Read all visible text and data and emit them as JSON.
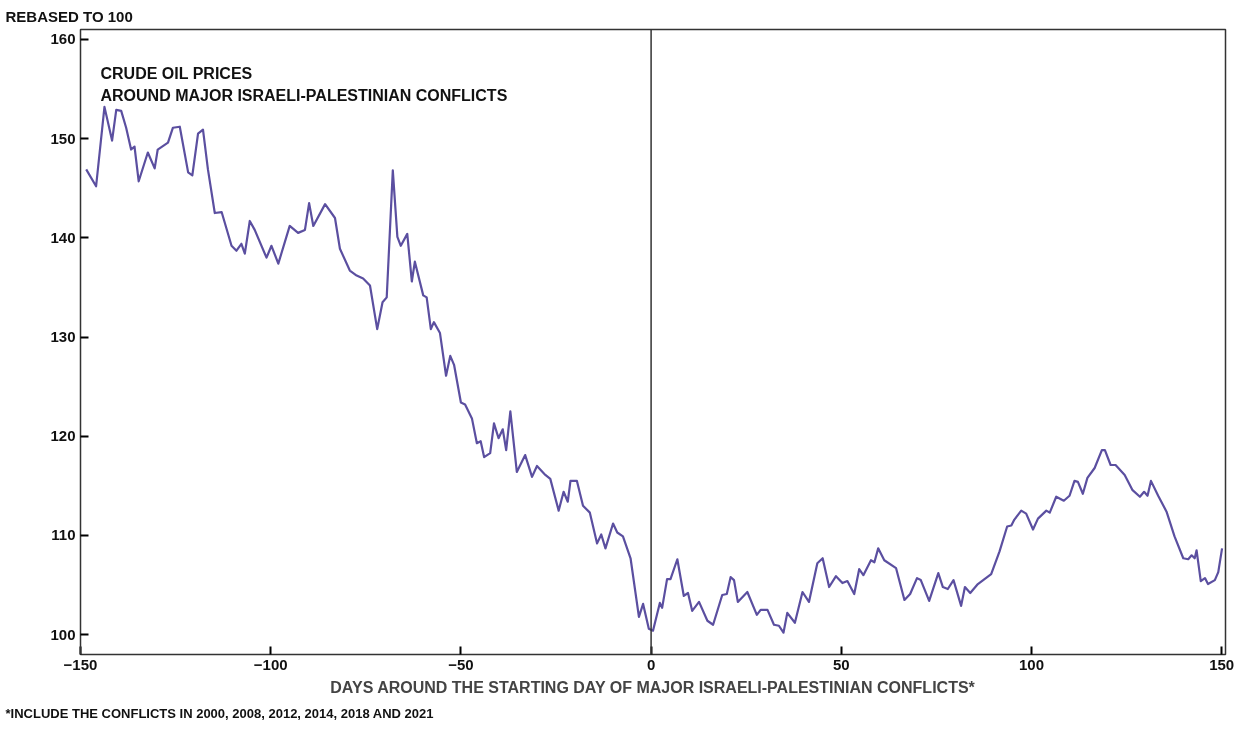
{
  "chart_data": {
    "type": "line",
    "title": "CRUDE OIL PRICES\nAROUND MAJOR ISRAELI-PALESTINIAN CONFLICTS",
    "ylabel": "REBASED TO 100",
    "xlabel": "DAYS AROUND THE STARTING DAY OF MAJOR ISRAELI-PALESTINIAN CONFLICTS*",
    "annotations": [
      "*INCLUDE THE CONFLICTS IN 2000, 2008, 2012, 2014, 2018 AND 2021"
    ],
    "xlim": [
      -150,
      151
    ],
    "ylim": [
      98,
      161
    ],
    "xticks": [
      -150,
      -100,
      -50,
      0,
      50,
      100,
      150
    ],
    "yticks": [
      100,
      110,
      120,
      130,
      140,
      150,
      160
    ],
    "grid": false,
    "marker": "none",
    "line_style": "solid",
    "ref_lines": [
      {
        "axis": "x",
        "value": 0,
        "color": "#333333"
      }
    ],
    "series": [
      {
        "color": "#5b4fa0",
        "x": [
          -148.5,
          -145.9,
          -143.7,
          -141.7,
          -140.6,
          -139.3,
          -138,
          -136.7,
          -135.8,
          -134.7,
          -132.3,
          -130.5,
          -129.7,
          -127,
          -125.7,
          -123.9,
          -121.7,
          -120.6,
          -119.1,
          -117.8,
          -116.5,
          -114.7,
          -112.9,
          -110.3,
          -109,
          -107.7,
          -106.8,
          -105.5,
          -104.2,
          -101.1,
          -99.8,
          -98,
          -95,
          -92.8,
          -91,
          -89.9,
          -88.8,
          -85.7,
          -83.1,
          -81.8,
          -79.2,
          -77.4,
          -75.7,
          -73.9,
          -72,
          -70.6,
          -69.5,
          -67.9,
          -66.7,
          -65.8,
          -64.1,
          -62.9,
          -62.1,
          -59.9,
          -59,
          -57.9,
          -57.1,
          -55.5,
          -53.9,
          -52.8,
          -51.8,
          -50,
          -48.9,
          -47.1,
          -45.8,
          -44.8,
          -43.9,
          -42.3,
          -41.3,
          -40.1,
          -39,
          -38.1,
          -37,
          -35.3,
          -33.1,
          -31.3,
          -30,
          -27.8,
          -26.5,
          -24.3,
          -23,
          -21.9,
          -21.2,
          -19.5,
          -17.9,
          -16.1,
          -14.2,
          -13.1,
          -12,
          -10,
          -8.9,
          -7.4,
          -5.4,
          -3.2,
          -2.1,
          -0.6,
          0.5,
          2.3,
          2.9,
          4.2,
          5.1,
          6.9,
          8.6,
          9.7,
          10.8,
          12.6,
          14.8,
          16.3,
          18.7,
          19.9,
          20.9,
          21.8,
          22.8,
          25.3,
          27.8,
          28.8,
          30.6,
          32.3,
          33.6,
          34.8,
          35.8,
          37.8,
          39.8,
          41.5,
          43.7,
          45.1,
          46.8,
          48.6,
          50.3,
          51.6,
          53.4,
          54.7,
          55.8,
          57.8,
          58.7,
          59.7,
          61.3,
          64.4,
          66.6,
          68.1,
          69.9,
          70.9,
          73.1,
          75.5,
          76.7,
          78,
          79.5,
          81.5,
          82.5,
          83.9,
          85.9,
          89.4,
          91.6,
          93.6,
          94.7,
          95.5,
          97.3,
          98.6,
          100.4,
          101.7,
          103.9,
          104.8,
          106.5,
          108.5,
          110,
          111.3,
          112.2,
          113.5,
          114.7,
          116.6,
          118.5,
          119.3,
          120.8,
          122.1,
          124.5,
          126.5,
          128.5,
          129.6,
          130.5,
          131.4,
          133.3,
          135.5,
          137.6,
          139.9,
          141.2,
          142.1,
          142.9,
          143.4,
          144.5,
          145.6,
          146.4,
          148.2,
          149.1,
          150.1
        ],
        "values": [
          146.9,
          145.2,
          153.2,
          149.8,
          152.9,
          152.8,
          151.1,
          148.9,
          149.2,
          145.7,
          148.6,
          147,
          148.9,
          149.6,
          151.1,
          151.2,
          146.6,
          146.3,
          150.5,
          150.9,
          146.9,
          142.5,
          142.6,
          139.2,
          138.7,
          139.4,
          138.4,
          141.7,
          140.8,
          138,
          139.2,
          137.4,
          141.2,
          140.5,
          140.8,
          143.5,
          141.2,
          143.4,
          142,
          138.9,
          136.7,
          136.2,
          135.9,
          135.2,
          130.8,
          133.5,
          134,
          146.8,
          140.1,
          139.2,
          140.4,
          135.6,
          137.6,
          134.2,
          134,
          130.8,
          131.5,
          130.4,
          126.1,
          128.1,
          127.2,
          123.4,
          123.2,
          121.8,
          119.3,
          119.5,
          117.9,
          118.3,
          121.3,
          119.8,
          120.7,
          118.6,
          122.5,
          116.4,
          118.1,
          115.9,
          117,
          116.1,
          115.7,
          112.5,
          114.4,
          113.4,
          115.5,
          115.5,
          113,
          112.3,
          109.2,
          110.1,
          108.7,
          111.2,
          110.3,
          109.9,
          107.7,
          101.8,
          103.1,
          100.6,
          100.4,
          103.2,
          102.7,
          105.6,
          105.6,
          107.6,
          103.9,
          104.2,
          102.4,
          103.3,
          101.4,
          101,
          104,
          104.1,
          105.8,
          105.5,
          103.3,
          104.3,
          102,
          102.5,
          102.5,
          101,
          100.9,
          100.2,
          102.2,
          101.2,
          104.3,
          103.3,
          107.2,
          107.7,
          104.8,
          105.9,
          105.2,
          105.4,
          104.1,
          106.6,
          106,
          107.5,
          107.3,
          108.7,
          107.5,
          106.7,
          103.5,
          104.1,
          105.7,
          105.5,
          103.4,
          106.2,
          104.8,
          104.6,
          105.5,
          102.9,
          104.8,
          104.2,
          105.1,
          106.1,
          108.4,
          110.9,
          111,
          111.6,
          112.5,
          112.2,
          110.6,
          111.7,
          112.5,
          112.3,
          113.9,
          113.5,
          114,
          115.5,
          115.4,
          114.2,
          115.8,
          116.8,
          118.6,
          118.6,
          117.1,
          117.1,
          116.1,
          114.6,
          113.9,
          114.4,
          114,
          115.5,
          114,
          112.4,
          109.9,
          107.7,
          107.6,
          108,
          107.7,
          108.5,
          105.4,
          105.7,
          105.1,
          105.5,
          106.3,
          108.7
        ]
      }
    ]
  }
}
